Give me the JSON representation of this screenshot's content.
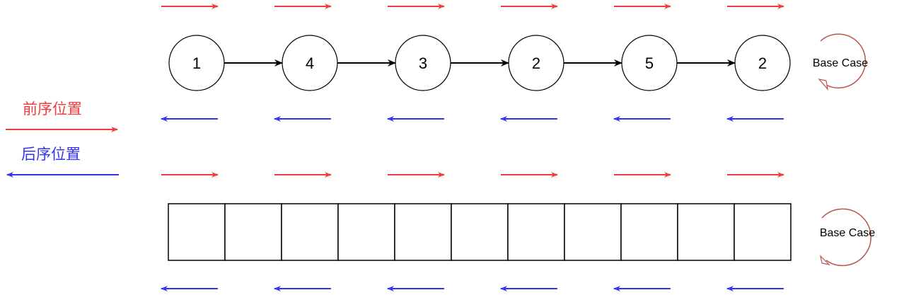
{
  "legend": {
    "preorder_label": "前序位置",
    "postorder_label": "后序位置",
    "preorder_color": "#f03c3c",
    "postorder_color": "#3333ee"
  },
  "linked_list": {
    "nodes": [
      "1",
      "4",
      "3",
      "2",
      "5",
      "2"
    ],
    "base_case_label": "Base Case"
  },
  "array": {
    "cell_count": 11,
    "base_case_label": "Base Case"
  },
  "colors": {
    "loop_arrow": "#b85450",
    "stroke": "#000000"
  }
}
